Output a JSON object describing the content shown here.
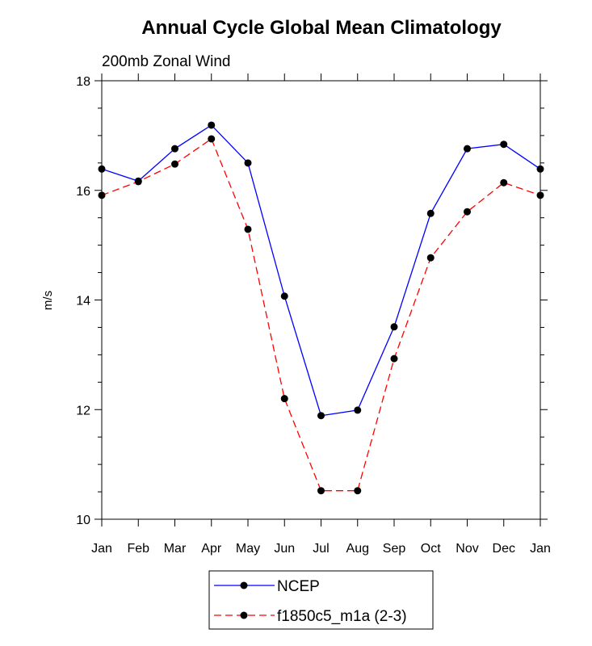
{
  "chart_data": {
    "type": "line",
    "title": "Annual Cycle Global Mean Climatology",
    "subtitle": "200mb Zonal Wind",
    "xlabel": "",
    "ylabel": "m/s",
    "categories": [
      "Jan",
      "Feb",
      "Mar",
      "Apr",
      "May",
      "Jun",
      "Jul",
      "Aug",
      "Sep",
      "Oct",
      "Nov",
      "Dec",
      "Jan"
    ],
    "ylim": [
      10,
      18
    ],
    "yticks": [
      10,
      12,
      14,
      16,
      18
    ],
    "grid": false,
    "legend_position": "bottom-center",
    "series": [
      {
        "name": "NCEP",
        "color": "#0000ff",
        "dash": "solid",
        "values": [
          16.39,
          16.17,
          16.76,
          17.19,
          16.5,
          14.07,
          11.89,
          11.99,
          13.51,
          15.58,
          16.76,
          16.84,
          16.39
        ]
      },
      {
        "name": "f1850c5_m1a (2-3)",
        "color": "#ff0000",
        "dash": "dashed",
        "values": [
          15.91,
          16.16,
          16.48,
          16.94,
          15.29,
          12.2,
          10.52,
          10.52,
          12.93,
          14.77,
          15.61,
          16.14,
          15.91
        ]
      }
    ]
  }
}
